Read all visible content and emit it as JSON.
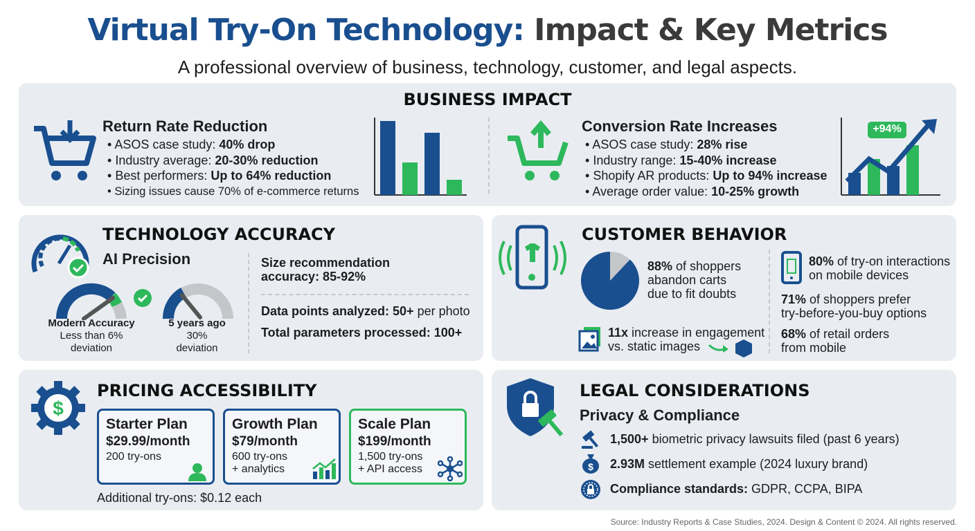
{
  "header": {
    "title_blue": "Virtual Try-On Technology:",
    "title_gray": "Impact & Key Metrics",
    "subtitle": "A professional overview of business, technology, customer, and legal aspects."
  },
  "business": {
    "title": "BUSINESS IMPACT",
    "returns": {
      "title": "Return Rate Reduction",
      "items": [
        {
          "text": "ASOS case study: ",
          "bold": "40% drop"
        },
        {
          "text": "Industry average: ",
          "bold": "20-30% reduction"
        },
        {
          "text": "Best performers: ",
          "bold": "Up to 64% reduction"
        },
        {
          "text": "Sizing issues cause 70% of e-commerce returns",
          "bold": ""
        }
      ]
    },
    "conversion": {
      "title": "Conversion Rate Increases",
      "badge": "+94%",
      "items": [
        {
          "text": "ASOS case study: ",
          "bold": "28% rise"
        },
        {
          "text": "Industry range: ",
          "bold": "15-40% increase"
        },
        {
          "text": "Shopify AR products: ",
          "bold": "Up to 94% increase"
        },
        {
          "text": "Average order value: ",
          "bold": "10-25% growth"
        }
      ]
    }
  },
  "technology": {
    "title": "TECHNOLOGY ACCURACY",
    "subtitle": "AI Precision",
    "gauges": [
      {
        "label": "Modern Accuracy",
        "line1": "Less than 6%",
        "line2": "deviation"
      },
      {
        "label": "5 years ago",
        "line1": "30%",
        "line2": "deviation"
      }
    ],
    "size_rec_1": "Size recommendation",
    "size_rec_2": "accuracy: 85-92%",
    "data_points_bold": "Data points analyzed: 50+",
    "data_points_rest": " per photo",
    "params": "Total parameters processed: 100+"
  },
  "customer": {
    "title": "CUSTOMER BEHAVIOR",
    "pie_percent": 88,
    "abandon": {
      "bold": "88%",
      "l1": " of shoppers",
      "l2": "abandon carts",
      "l3": "due to fit doubts"
    },
    "engagement": {
      "bold": "11x",
      "l1": " increase in engagement",
      "l2": "vs. static images"
    },
    "mobile": {
      "bold": "80%",
      "l1": " of try-on interactions",
      "l2": "on mobile devices"
    },
    "prefer": {
      "bold": "71%",
      "l1": " of shoppers prefer",
      "l2": "try-before-you-buy options"
    },
    "orders": {
      "bold": "68%",
      "l1": " of retail orders",
      "l2": "from mobile"
    }
  },
  "pricing": {
    "title": "PRICING ACCESSIBILITY",
    "plans": [
      {
        "name": "Starter Plan",
        "price": "$29.99/month",
        "d1": "200 try-ons",
        "d2": ""
      },
      {
        "name": "Growth Plan",
        "price": "$79/month",
        "d1": "600 try-ons",
        "d2": "+ analytics"
      },
      {
        "name": "Scale Plan",
        "price": "$199/month",
        "d1": "1,500 try-ons",
        "d2": "+ API access"
      }
    ],
    "additional": "Additional try-ons: $0.12 each"
  },
  "legal": {
    "title": "LEGAL CONSIDERATIONS",
    "subtitle": "Privacy & Compliance",
    "items": [
      {
        "bold": "1,500+",
        "text": " biometric privacy lawsuits filed (past 6 years)"
      },
      {
        "bold": "2.93M",
        "text": " settlement example (2024 luxury brand)"
      },
      {
        "bold": "Compliance standards:",
        "text": " GDPR, CCPA, BIPA"
      }
    ]
  },
  "footer": "Source: Industry Reports & Case Studies, 2024. Design & Content © 2024. All rights reserved.",
  "colors": {
    "blue": "#1a4f8f",
    "green": "#2eb85c",
    "panel": "#e9edf2"
  }
}
